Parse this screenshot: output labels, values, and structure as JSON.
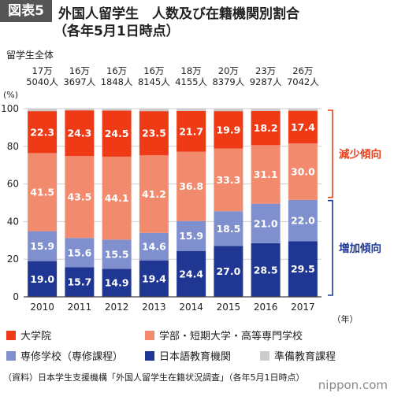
{
  "figure_label": "図表5",
  "title_line1": "外国人留学生　人数及び在籍機関別割合",
  "title_line2": "（各年5月1日時点）",
  "total_label": "留学生全体",
  "year_unit": "（年）",
  "source": "（資料）日本学生支援機構「外国人留学生在籍状況調査」（各年5月1日時点）",
  "logo_text": "nippon.com",
  "chart_data": {
    "type": "bar",
    "stacked": true,
    "categories": [
      "2010",
      "2011",
      "2012",
      "2013",
      "2014",
      "2015",
      "2016",
      "2017"
    ],
    "totals": [
      [
        "17万",
        "5040人"
      ],
      [
        "16万",
        "3697人"
      ],
      [
        "16万",
        "1848人"
      ],
      [
        "16万",
        "8145人"
      ],
      [
        "18万",
        "4155人"
      ],
      [
        "20万",
        "8379人"
      ],
      [
        "23万",
        "9287人"
      ],
      [
        "26万",
        "7042人"
      ]
    ],
    "series": [
      {
        "name": "日本語教育機関",
        "color": "#1f3793",
        "values": [
          19.0,
          15.7,
          14.9,
          19.4,
          24.4,
          27.0,
          28.5,
          29.5
        ],
        "labels": [
          "19.0",
          "15.7",
          "14.9",
          "19.4",
          "24.4",
          "27.0",
          "28.5",
          "29.5"
        ]
      },
      {
        "name": "専修学校（専修課程）",
        "color": "#8090cf",
        "values": [
          15.9,
          15.6,
          15.5,
          14.6,
          15.9,
          18.5,
          21.0,
          22.0
        ],
        "labels": [
          "15.9",
          "15.6",
          "15.5",
          "14.6",
          "15.9",
          "18.5",
          "21.0",
          "22.0"
        ]
      },
      {
        "name": "学部・短期大学・高等専門学校",
        "color": "#f28a6e",
        "values": [
          41.5,
          43.5,
          44.1,
          41.2,
          36.8,
          33.3,
          31.1,
          30.0
        ],
        "labels": [
          "41.5",
          "43.5",
          "44.1",
          "41.2",
          "36.8",
          "33.3",
          "31.1",
          "30.0"
        ]
      },
      {
        "name": "大学院",
        "color": "#ee3b16",
        "values": [
          22.3,
          24.3,
          24.5,
          23.5,
          21.7,
          19.9,
          18.2,
          17.4
        ],
        "labels": [
          "22.3",
          "24.3",
          "24.5",
          "23.5",
          "21.7",
          "19.9",
          "18.2",
          "17.4"
        ]
      },
      {
        "name": "準備教育課程",
        "color": "#cccccc",
        "values": [
          1.3,
          0.9,
          1.0,
          1.3,
          1.2,
          1.3,
          1.2,
          1.1
        ],
        "labels": []
      }
    ],
    "ylabel": "(%)",
    "ylim": [
      0,
      100
    ],
    "yticks": [
      0,
      20,
      40,
      60,
      80,
      100
    ],
    "grid": true,
    "annotations": [
      {
        "text": "減少傾向",
        "color": "#e8401c",
        "range": [
          52,
          100
        ]
      },
      {
        "text": "増加傾向",
        "color": "#1f3793",
        "range": [
          0,
          52
        ]
      }
    ],
    "legend": {
      "position": "bottom",
      "items": [
        {
          "name": "大学院",
          "color": "#ee3b16"
        },
        {
          "name": "学部・短期大学・高等専門学校",
          "color": "#f28a6e"
        },
        {
          "name": "専修学校（専修課程）",
          "color": "#8090cf"
        },
        {
          "name": "日本語教育機関",
          "color": "#1f3793"
        },
        {
          "name": "準備教育課程",
          "color": "#cccccc"
        }
      ]
    }
  }
}
